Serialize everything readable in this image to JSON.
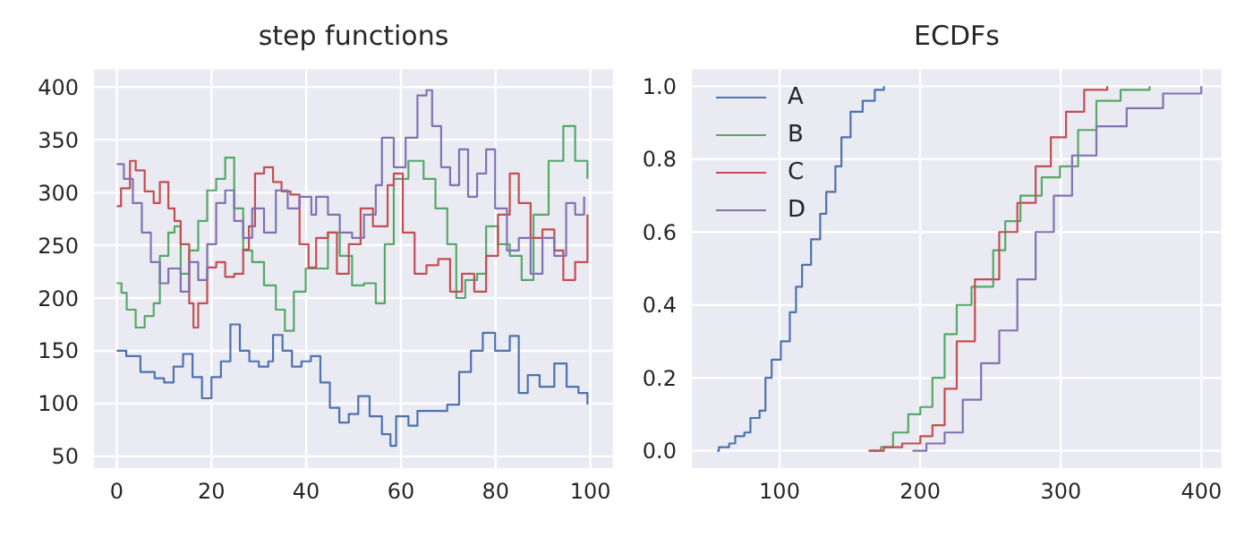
{
  "chart_data": [
    {
      "type": "step",
      "title": "step functions",
      "xlim": [
        -5,
        105
      ],
      "ylim": [
        38,
        418
      ],
      "xticks": [
        0,
        20,
        40,
        60,
        80,
        100
      ],
      "yticks": [
        50,
        100,
        150,
        200,
        250,
        300,
        350,
        400
      ],
      "grid": true,
      "series": [
        {
          "color": "#4c72b0",
          "x": [
            0,
            2,
            5,
            8,
            10,
            12,
            14,
            16,
            18,
            20,
            22,
            24,
            26,
            28,
            30,
            32,
            33,
            35,
            37,
            39,
            41,
            43,
            45,
            47,
            49,
            51,
            53.4,
            56,
            57.8,
            59,
            61.6,
            63.5,
            66.6,
            69.8,
            72.3,
            74.8,
            77.3,
            79.9,
            83,
            84.9,
            86.8,
            89.3,
            92.4,
            95,
            97.5,
            99.4
          ],
          "values": [
            150,
            145,
            130,
            124,
            120,
            135,
            147,
            125,
            105,
            125,
            140,
            175,
            150,
            140,
            135,
            140,
            165,
            150,
            135,
            140,
            145,
            120,
            96,
            82,
            90,
            107,
            88,
            71,
            60,
            88,
            79,
            93,
            93,
            99,
            130,
            150,
            167,
            150,
            164,
            110,
            127,
            116,
            138,
            116,
            110,
            99
          ]
        },
        {
          "color": "#55a868",
          "x": [
            0,
            1,
            2.1,
            4,
            5.9,
            7.8,
            9.1,
            10.9,
            12.2,
            13.5,
            15.3,
            17.2,
            19.1,
            21,
            22.9,
            24.8,
            26.7,
            28.6,
            31.1,
            33.6,
            35.5,
            37.4,
            39.9,
            42.1,
            44.6,
            47.1,
            49.7,
            52.2,
            54.7,
            56.6,
            58.5,
            61.6,
            64.8,
            67.3,
            69.8,
            71.7,
            73.6,
            76.1,
            78,
            80.5,
            83,
            85.5,
            88,
            91.2,
            94.3,
            96.8,
            99.4
          ],
          "values": [
            214,
            205,
            189,
            172,
            183,
            195,
            240,
            262,
            268,
            223,
            245,
            273,
            302,
            313,
            333,
            285,
            245,
            234,
            212,
            189,
            169,
            206,
            228,
            228,
            262,
            240,
            212,
            214,
            195,
            251,
            313,
            330,
            313,
            285,
            251,
            200,
            217,
            223,
            268,
            251,
            240,
            217,
            279,
            330,
            363,
            330,
            313
          ]
        },
        {
          "color": "#c44e52",
          "x": [
            0,
            0.9,
            2.8,
            4,
            5.9,
            7.8,
            9.1,
            10.9,
            12.2,
            13.5,
            15.3,
            16.2,
            17.2,
            19.1,
            21,
            22.9,
            24.8,
            26.7,
            27.9,
            29.2,
            31.1,
            33,
            34.8,
            36.7,
            38.6,
            40.5,
            42.1,
            44.6,
            46.5,
            49,
            51.5,
            54.1,
            57.2,
            58.5,
            60.4,
            62.9,
            65.4,
            67.9,
            70.4,
            72.9,
            75.5,
            78,
            80.5,
            83,
            84.9,
            87.4,
            89.9,
            92.4,
            94.3,
            96.8,
            99.4
          ],
          "values": [
            287,
            304,
            330,
            321,
            301,
            290,
            310,
            285,
            273,
            251,
            195,
            172,
            195,
            229,
            234,
            220,
            223,
            246,
            268,
            318,
            324,
            310,
            301,
            298,
            251,
            229,
            257,
            262,
            223,
            251,
            285,
            268,
            307,
            318,
            262,
            223,
            231,
            237,
            206,
            223,
            206,
            240,
            279,
            318,
            290,
            257,
            265,
            245,
            217,
            234,
            279
          ]
        },
        {
          "color": "#8172b2",
          "x": [
            0,
            1.5,
            3.4,
            5.3,
            7.2,
            9.1,
            10.9,
            13.5,
            15.3,
            17.2,
            19.1,
            21,
            22.9,
            24.8,
            26.7,
            28.6,
            31.1,
            33.6,
            36.1,
            38.6,
            41.1,
            42.1,
            44.6,
            47.1,
            49.7,
            52.2,
            54.7,
            56,
            58.5,
            61,
            63.5,
            65.4,
            66.6,
            68.5,
            70.4,
            72.3,
            74.2,
            76.1,
            78,
            79.9,
            82.4,
            84.9,
            87.4,
            89.9,
            92.4,
            94.9,
            96.8,
            98.7
          ],
          "values": [
            327,
            313,
            290,
            262,
            234,
            214,
            228,
            206,
            234,
            217,
            251,
            290,
            302,
            273,
            257,
            285,
            262,
            302,
            285,
            296,
            279,
            296,
            279,
            262,
            257,
            279,
            307,
            352,
            324,
            352,
            392,
            397,
            363,
            324,
            307,
            341,
            296,
            318,
            341,
            285,
            245,
            257,
            223,
            257,
            240,
            290,
            279,
            296
          ]
        }
      ]
    },
    {
      "type": "step",
      "title": "ECDFs",
      "xlim": [
        37,
        415
      ],
      "ylim": [
        -0.05,
        1.05
      ],
      "xticks": [
        100,
        200,
        300,
        400
      ],
      "yticks": [
        {
          "value": 0,
          "label": "0.0"
        },
        {
          "value": 0.2,
          "label": "0.2"
        },
        {
          "value": 0.4,
          "label": "0.4"
        },
        {
          "value": 0.6,
          "label": "0.6"
        },
        {
          "value": 0.8,
          "label": "0.8"
        },
        {
          "value": 1,
          "label": "1.0"
        }
      ],
      "grid": true,
      "legend": "top left",
      "series": [
        {
          "name": "A",
          "color": "#4c72b0",
          "x": [
            55.6,
            56.9,
            64.2,
            68.5,
            75,
            79.3,
            85.8,
            90,
            94.4,
            100.9,
            107.3,
            111.7,
            116,
            122.4,
            128.9,
            133.2,
            139.7,
            144,
            150.5,
            159.1,
            167.7,
            174.2
          ],
          "values": [
            0,
            0.01,
            0.02,
            0.04,
            0.05,
            0.09,
            0.11,
            0.2,
            0.25,
            0.3,
            0.38,
            0.45,
            0.51,
            0.58,
            0.65,
            0.71,
            0.78,
            0.86,
            0.93,
            0.96,
            0.99,
            1
          ]
        },
        {
          "name": "B",
          "color": "#55a868",
          "x": [
            163.4,
            172.1,
            180.7,
            191.5,
            200.1,
            208.7,
            217.4,
            226,
            236.5,
            251.9,
            260.5,
            271.3,
            286.4,
            299.4,
            312.3,
            325.3,
            342.5,
            363.2
          ],
          "values": [
            0,
            0.01,
            0.05,
            0.1,
            0.12,
            0.2,
            0.32,
            0.4,
            0.45,
            0.55,
            0.63,
            0.7,
            0.75,
            0.78,
            0.88,
            0.96,
            0.99,
            1
          ]
        },
        {
          "name": "C",
          "color": "#c44e52",
          "x": [
            163.4,
            174.2,
            187.2,
            200.1,
            208.7,
            217.4,
            226,
            238.9,
            256.2,
            269.1,
            282.1,
            292.9,
            303.7,
            316.6,
            333
          ],
          "values": [
            0,
            0.01,
            0.02,
            0.04,
            0.07,
            0.17,
            0.3,
            0.47,
            0.6,
            0.68,
            0.78,
            0.86,
            0.93,
            0.99,
            1
          ]
        },
        {
          "name": "D",
          "color": "#8172b2",
          "x": [
            194.5,
            204.4,
            217.4,
            230.3,
            243.3,
            256.2,
            269.1,
            282.1,
            295,
            308,
            325.3,
            346.8,
            372.7,
            399.9
          ],
          "values": [
            0,
            0.02,
            0.05,
            0.14,
            0.24,
            0.33,
            0.47,
            0.6,
            0.7,
            0.81,
            0.89,
            0.94,
            0.98,
            1
          ]
        }
      ]
    }
  ]
}
